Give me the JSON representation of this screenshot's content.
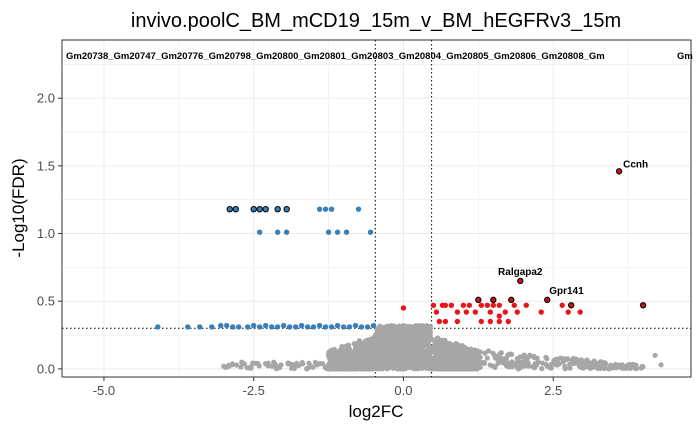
{
  "chart_data": {
    "type": "scatter",
    "title": "invivo.poolC_BM_mCD19_15m_v_BM_hEGFRv3_15m",
    "xlabel": "log2FC",
    "ylabel": "-Log10(FDR)",
    "xlim": [
      -5.7,
      4.8
    ],
    "ylim": [
      -0.06,
      2.43
    ],
    "x_ticks": [
      -5.0,
      -2.5,
      0.0,
      2.5
    ],
    "x_tick_labels": [
      "-5.0",
      "-2.5",
      "0.0",
      "2.5"
    ],
    "y_ticks": [
      0.0,
      0.5,
      1.0,
      1.5,
      2.0
    ],
    "y_tick_labels": [
      "0.0",
      "0.5",
      "1.0",
      "1.5",
      "2.0"
    ],
    "grid": true,
    "threshold_lines": {
      "x": [
        -0.47,
        0.47
      ],
      "y": 0.3
    },
    "colors": {
      "not_significant": "#a6a6a6",
      "down": "#3b7fb8",
      "up": "#e8151b",
      "labeled_down": "#3b7fb8",
      "labeled_up": "#c0141a",
      "outline": "#000000"
    },
    "top_text": "Gm20738_Gm20747_Gm20776_Gm20798_Gm20800_Gm20801_Gm20803_Gm20804_Gm20805_Gm20806_Gm20808_Gm",
    "top_text_fragment": "Gm",
    "series": [
      {
        "group": "down",
        "points": [
          [
            -2.4,
            1.01
          ],
          [
            -2.1,
            1.01
          ],
          [
            -1.95,
            1.01
          ],
          [
            -1.25,
            1.01
          ],
          [
            -1.1,
            1.01
          ],
          [
            -0.95,
            1.01
          ],
          [
            -0.55,
            1.01
          ],
          [
            -2.1,
            1.18
          ],
          [
            -1.4,
            1.18
          ],
          [
            -1.3,
            1.18
          ],
          [
            -1.2,
            1.18
          ],
          [
            -0.75,
            1.18
          ],
          [
            -4.1,
            0.31
          ],
          [
            -3.6,
            0.31
          ],
          [
            -3.4,
            0.31
          ],
          [
            -3.2,
            0.31
          ],
          [
            -3.05,
            0.32
          ],
          [
            -2.95,
            0.32
          ],
          [
            -2.85,
            0.31
          ],
          [
            -2.75,
            0.31
          ],
          [
            -2.6,
            0.31
          ],
          [
            -2.5,
            0.32
          ],
          [
            -2.4,
            0.31
          ],
          [
            -2.3,
            0.32
          ],
          [
            -2.2,
            0.31
          ],
          [
            -2.1,
            0.31
          ],
          [
            -2.0,
            0.32
          ],
          [
            -1.9,
            0.31
          ],
          [
            -1.8,
            0.31
          ],
          [
            -1.7,
            0.32
          ],
          [
            -1.6,
            0.31
          ],
          [
            -1.5,
            0.31
          ],
          [
            -1.4,
            0.32
          ],
          [
            -1.3,
            0.31
          ],
          [
            -1.2,
            0.31
          ],
          [
            -1.1,
            0.32
          ],
          [
            -1.0,
            0.31
          ],
          [
            -0.9,
            0.31
          ],
          [
            -0.8,
            0.32
          ],
          [
            -0.7,
            0.31
          ],
          [
            -0.6,
            0.31
          ],
          [
            -0.5,
            0.32
          ]
        ]
      },
      {
        "group": "labeled_down",
        "points": [
          [
            -2.9,
            1.18
          ],
          [
            -2.8,
            1.18
          ],
          [
            -2.5,
            1.18
          ],
          [
            -2.4,
            1.18
          ],
          [
            -2.3,
            1.18
          ],
          [
            -2.1,
            1.18
          ],
          [
            -1.95,
            1.18
          ]
        ]
      },
      {
        "group": "up",
        "points": [
          [
            0.0,
            0.45
          ],
          [
            0.5,
            0.47
          ],
          [
            0.65,
            0.47
          ],
          [
            0.7,
            0.47
          ],
          [
            0.8,
            0.47
          ],
          [
            1.0,
            0.47
          ],
          [
            1.1,
            0.47
          ],
          [
            1.3,
            0.47
          ],
          [
            1.4,
            0.47
          ],
          [
            1.5,
            0.47
          ],
          [
            1.6,
            0.47
          ],
          [
            1.85,
            0.47
          ],
          [
            2.05,
            0.47
          ],
          [
            2.65,
            0.47
          ],
          [
            0.55,
            0.42
          ],
          [
            0.9,
            0.42
          ],
          [
            1.05,
            0.42
          ],
          [
            1.2,
            0.42
          ],
          [
            1.45,
            0.42
          ],
          [
            1.7,
            0.42
          ],
          [
            1.9,
            0.42
          ],
          [
            2.3,
            0.42
          ],
          [
            2.75,
            0.42
          ],
          [
            2.95,
            0.42
          ],
          [
            1.6,
            0.39
          ],
          [
            0.6,
            0.35
          ],
          [
            0.7,
            0.35
          ],
          [
            0.9,
            0.35
          ],
          [
            1.3,
            0.35
          ],
          [
            1.45,
            0.35
          ],
          [
            1.6,
            0.35
          ],
          [
            1.75,
            0.35
          ]
        ]
      },
      {
        "group": "labeled_up",
        "points": [
          [
            3.6,
            1.46
          ],
          [
            1.95,
            0.65
          ],
          [
            2.4,
            0.51
          ],
          [
            1.25,
            0.51
          ],
          [
            1.5,
            0.51
          ],
          [
            1.8,
            0.51
          ],
          [
            2.8,
            0.47
          ],
          [
            4.0,
            0.47
          ]
        ]
      }
    ],
    "gene_labels": [
      {
        "text": "Ccnh",
        "x": 3.6,
        "y": 1.46
      },
      {
        "text": "Ralgapa2",
        "x": 1.95,
        "y": 0.65
      },
      {
        "text": "Gpr141",
        "x": 2.4,
        "y": 0.51
      }
    ]
  }
}
